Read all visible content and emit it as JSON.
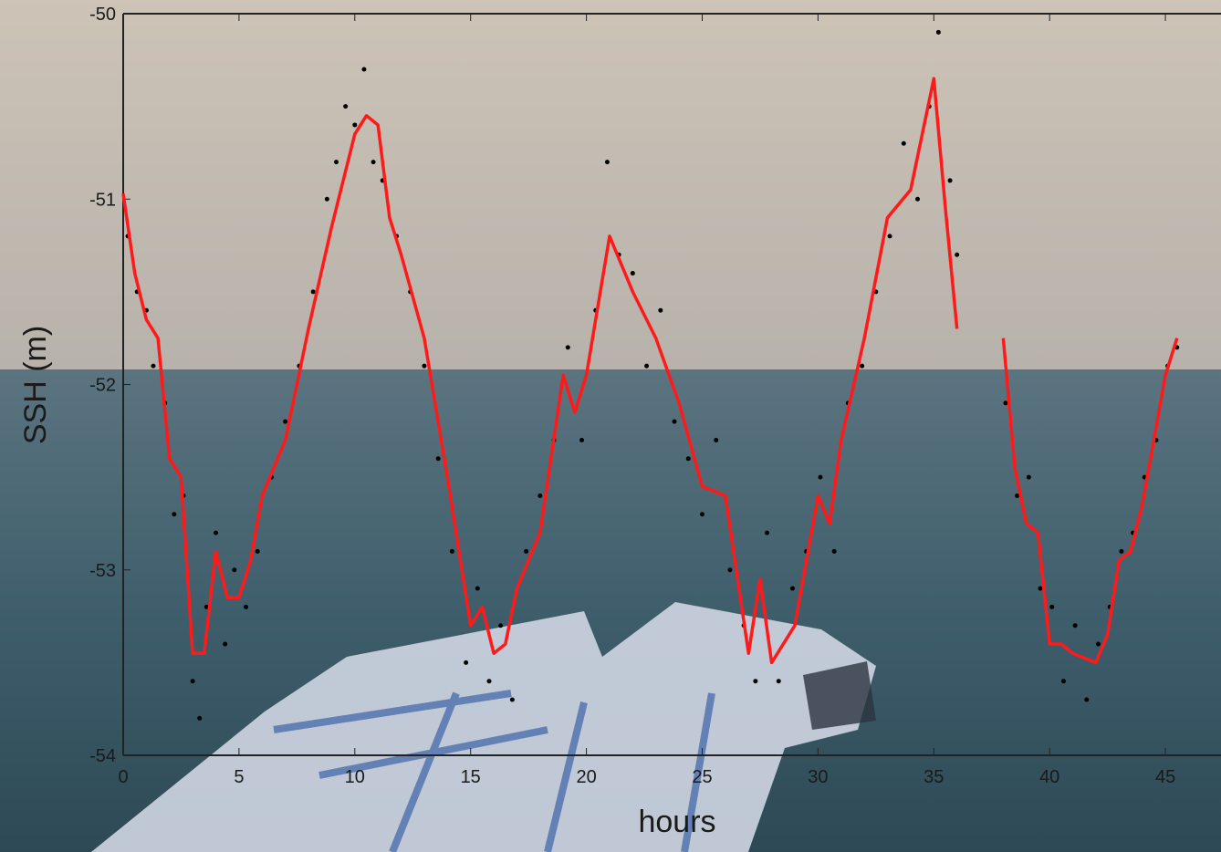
{
  "chart_data": {
    "type": "line",
    "xlabel": "hours",
    "ylabel": "SSH (m)",
    "xlim": [
      0,
      47.4
    ],
    "ylim": [
      -54,
      -50
    ],
    "xticks": [
      0,
      5,
      10,
      15,
      20,
      25,
      30,
      35,
      40,
      45
    ],
    "yticks": [
      -54,
      -53,
      -52,
      -51,
      -50
    ],
    "series": [
      {
        "color": "#000000",
        "marker": "dot",
        "x": [
          0.2,
          0.6,
          1.0,
          1.3,
          1.8,
          2.2,
          2.6,
          3.0,
          3.3,
          3.6,
          4.0,
          4.4,
          4.8,
          5.3,
          5.8,
          6.4,
          7.0,
          7.6,
          8.2,
          8.8,
          9.2,
          9.6,
          10.0,
          10.4,
          10.8,
          11.2,
          11.8,
          12.4,
          13.0,
          13.6,
          14.2,
          14.8,
          15.3,
          15.8,
          16.3,
          16.8,
          17.4,
          18.0,
          18.6,
          19.2,
          19.8,
          20.4,
          20.9,
          21.4,
          22.0,
          22.6,
          23.2,
          23.8,
          24.4,
          25.0,
          25.6,
          26.2,
          26.8,
          27.3,
          27.8,
          28.3,
          28.9,
          29.5,
          30.1,
          30.7,
          31.3,
          31.9,
          32.5,
          33.1,
          33.7,
          34.3,
          34.8,
          35.2,
          35.7,
          36.0,
          38.1,
          38.6,
          39.1,
          39.6,
          40.1,
          40.6,
          41.1,
          41.6,
          42.1,
          42.6,
          43.1,
          43.6,
          44.1,
          44.6,
          45.1,
          45.5
        ],
        "values": [
          -51.2,
          -51.5,
          -51.6,
          -51.9,
          -52.1,
          -52.7,
          -52.6,
          -53.6,
          -53.8,
          -53.2,
          -52.8,
          -53.4,
          -53.0,
          -53.2,
          -52.9,
          -52.5,
          -52.2,
          -51.9,
          -51.5,
          -51.0,
          -50.8,
          -50.5,
          -50.6,
          -50.3,
          -50.8,
          -50.9,
          -51.2,
          -51.5,
          -51.9,
          -52.4,
          -52.9,
          -53.5,
          -53.1,
          -53.6,
          -53.3,
          -53.7,
          -52.9,
          -52.6,
          -52.3,
          -51.8,
          -52.3,
          -51.6,
          -50.8,
          -51.3,
          -51.4,
          -51.9,
          -51.6,
          -52.2,
          -52.4,
          -52.7,
          -52.3,
          -53.0,
          -53.3,
          -53.6,
          -52.8,
          -53.6,
          -53.1,
          -52.9,
          -52.5,
          -52.9,
          -52.1,
          -51.9,
          -51.5,
          -51.2,
          -50.7,
          -51.0,
          -50.5,
          -50.1,
          -50.9,
          -51.3,
          -52.1,
          -52.6,
          -52.5,
          -53.1,
          -53.2,
          -53.6,
          -53.3,
          -53.7,
          -53.4,
          -53.2,
          -52.9,
          -52.8,
          -52.5,
          -52.3,
          -51.9,
          -51.8
        ]
      },
      {
        "color": "#ff1a1a",
        "x": [
          0,
          0.5,
          1,
          1.5,
          2,
          2.5,
          3,
          3.5,
          4,
          4.5,
          5,
          5.5,
          6,
          7,
          8,
          9,
          10,
          10.5,
          11,
          11.5,
          12,
          13,
          14,
          15,
          15.5,
          16,
          16.5,
          17,
          18,
          19,
          19.5,
          20,
          21,
          22,
          23,
          24,
          25,
          26,
          27,
          27.5,
          28,
          29,
          30,
          30.5,
          31,
          32,
          33,
          34,
          35,
          35.5,
          36,
          37,
          38,
          38.5,
          39,
          39.5,
          40,
          40.5,
          41,
          42,
          42.5,
          43,
          43.5,
          44,
          45,
          45.5
        ],
        "values": [
          -50.97,
          -51.4,
          -51.65,
          -51.75,
          -52.4,
          -52.5,
          -53.45,
          -53.45,
          -52.9,
          -53.15,
          -53.15,
          -52.95,
          -52.6,
          -52.3,
          -51.7,
          -51.15,
          -50.65,
          -50.55,
          -50.6,
          -51.1,
          -51.3,
          -51.75,
          -52.5,
          -53.3,
          -53.2,
          -53.45,
          -53.4,
          -53.1,
          -52.8,
          -51.95,
          -52.15,
          -51.95,
          -51.2,
          -51.5,
          -51.75,
          -52.1,
          -52.55,
          -52.6,
          -53.45,
          -53.05,
          -53.5,
          -53.3,
          -52.6,
          -52.75,
          -52.3,
          -51.75,
          -51.1,
          -50.95,
          -50.35,
          -51.05,
          -51.7,
          null,
          -51.75,
          -52.45,
          -52.75,
          -52.8,
          -53.4,
          -53.4,
          -53.45,
          -53.5,
          -53.35,
          -52.95,
          -52.9,
          -52.65,
          -51.95,
          -51.75
        ]
      }
    ]
  }
}
